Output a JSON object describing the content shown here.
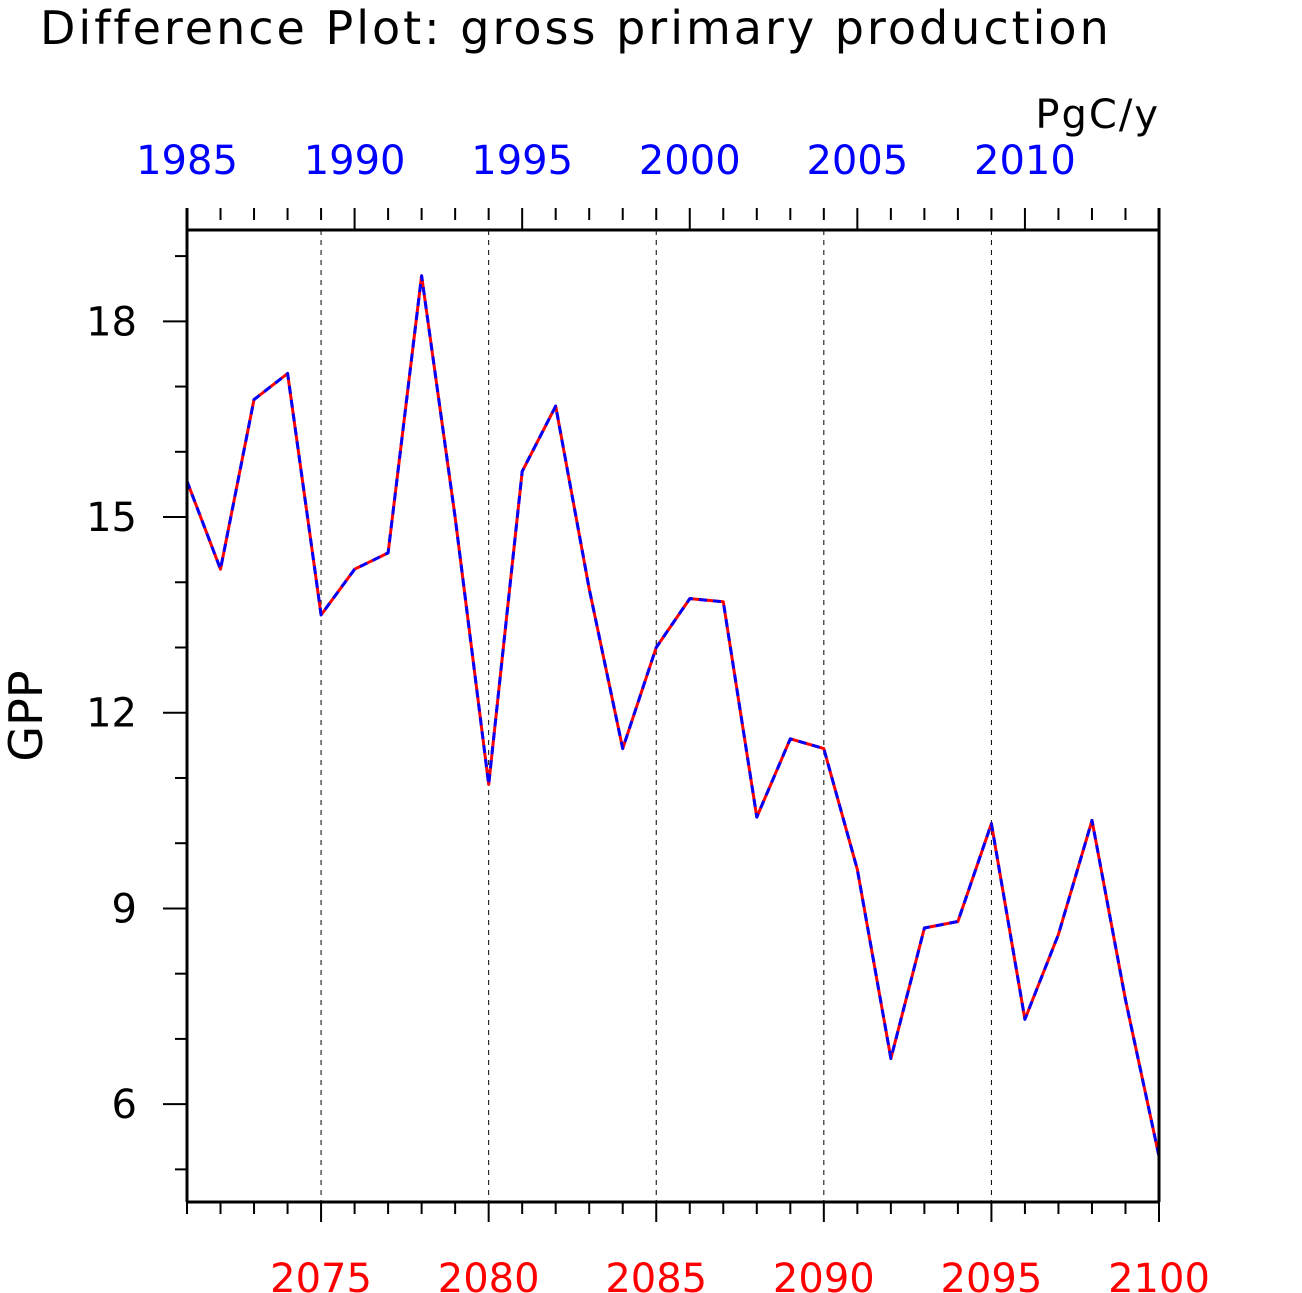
{
  "chart_data": {
    "type": "line",
    "title": "Difference Plot: gross primary production",
    "units": "PgC/y",
    "ylabel": "GPP",
    "xlabel": "",
    "ylim": [
      4.5,
      19.4
    ],
    "yticks": [
      6,
      9,
      12,
      15,
      18
    ],
    "y_minor_step": 1,
    "grid": "vertical dashed lines at bottom-axis major ticks",
    "bottom_axis": {
      "color": "#ff0000",
      "range": [
        2071,
        2100
      ],
      "ticks": [
        2075,
        2080,
        2085,
        2090,
        2095,
        2100
      ]
    },
    "top_axis": {
      "color": "#0000ff",
      "range": [
        1985,
        2014
      ],
      "ticks": [
        1985,
        1990,
        1995,
        2000,
        2005,
        2010
      ]
    },
    "x": [
      2071,
      2072,
      2073,
      2074,
      2075,
      2076,
      2077,
      2078,
      2079,
      2080,
      2081,
      2082,
      2083,
      2084,
      2085,
      2086,
      2087,
      2088,
      2089,
      2090,
      2091,
      2092,
      2093,
      2094,
      2095,
      2096,
      2097,
      2098,
      2099,
      2100
    ],
    "series": [
      {
        "color": "#ff0000",
        "style": "solid",
        "values": [
          15.55,
          14.2,
          16.8,
          17.2,
          13.5,
          14.2,
          14.45,
          18.7,
          15.0,
          10.9,
          15.7,
          16.7,
          13.9,
          11.45,
          13.0,
          13.75,
          13.7,
          10.4,
          11.6,
          11.45,
          9.6,
          6.7,
          8.7,
          8.8,
          10.3,
          7.3,
          8.6,
          10.35,
          7.6,
          5.2
        ]
      },
      {
        "color": "#0000ff",
        "style": "dashed",
        "values": [
          15.55,
          14.2,
          16.8,
          17.2,
          13.5,
          14.2,
          14.45,
          18.7,
          15.0,
          10.9,
          15.7,
          16.7,
          13.9,
          11.45,
          13.0,
          13.75,
          13.7,
          10.4,
          11.6,
          11.45,
          9.6,
          6.7,
          8.7,
          8.8,
          10.3,
          7.3,
          8.6,
          10.35,
          7.6,
          5.2
        ]
      }
    ]
  }
}
